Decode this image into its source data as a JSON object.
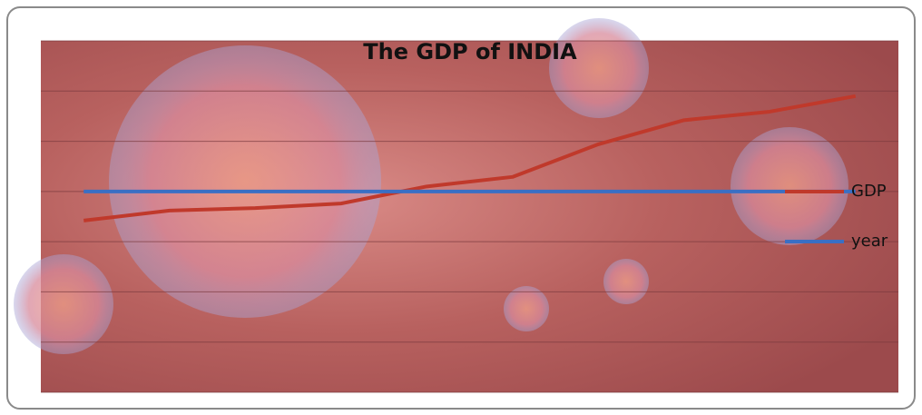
{
  "chart_data": {
    "type": "line",
    "title": "The GDP of INDIA",
    "categories": [
      null,
      null,
      null,
      null,
      null,
      null,
      null,
      null,
      null,
      null
    ],
    "series": [
      {
        "name": "GDP",
        "color": "#c0392b",
        "values": [
          3.42,
          3.62,
          3.67,
          3.76,
          4.1,
          4.29,
          4.94,
          5.42,
          5.59,
          5.9
        ]
      },
      {
        "name": "year",
        "color": "#3a6fc4",
        "values": [
          4,
          4,
          4,
          4,
          4,
          4,
          4,
          4,
          4,
          4
        ]
      }
    ],
    "ylim": [
      0,
      7
    ],
    "yticks": [
      0,
      1,
      2,
      3,
      4,
      5,
      6,
      7
    ],
    "grid": true,
    "legend": "right"
  }
}
